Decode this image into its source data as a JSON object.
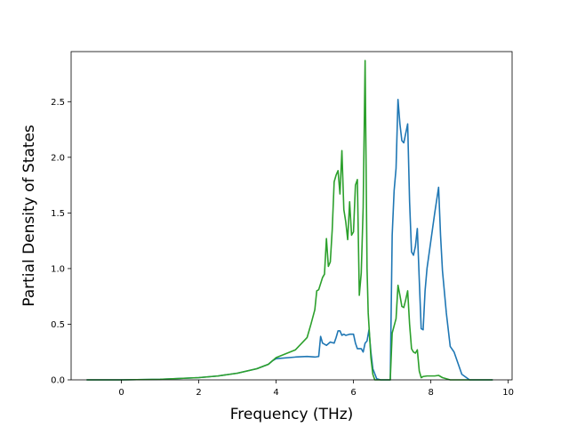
{
  "chart_data": {
    "type": "line",
    "title": "",
    "xlabel": "Frequency (THz)",
    "ylabel": "Partial Density of States",
    "xlim": [
      -1.3,
      10.1
    ],
    "ylim": [
      0,
      2.95
    ],
    "xticks": [
      0,
      2,
      4,
      6,
      8,
      10
    ],
    "yticks": [
      0.0,
      0.5,
      1.0,
      1.5,
      2.0,
      2.5
    ],
    "xtick_labels": [
      "0",
      "2",
      "4",
      "6",
      "8",
      "10"
    ],
    "ytick_labels": [
      "0.0",
      "0.5",
      "1.0",
      "1.5",
      "2.0",
      "2.5"
    ],
    "grid": false,
    "legend": "none",
    "series": [
      {
        "color": "#1f77b4",
        "x": [
          -0.9,
          0.0,
          1.0,
          2.0,
          2.5,
          3.0,
          3.5,
          3.8,
          3.9,
          4.0,
          4.5,
          4.8,
          5.0,
          5.1,
          5.15,
          5.2,
          5.3,
          5.4,
          5.5,
          5.55,
          5.6,
          5.65,
          5.7,
          5.75,
          5.8,
          5.9,
          6.0,
          6.05,
          6.1,
          6.2,
          6.25,
          6.3,
          6.35,
          6.4,
          6.45,
          6.5,
          6.6,
          6.7,
          6.8,
          6.9,
          6.95,
          7.0,
          7.05,
          7.1,
          7.15,
          7.2,
          7.25,
          7.3,
          7.4,
          7.45,
          7.5,
          7.55,
          7.6,
          7.65,
          7.7,
          7.75,
          7.8,
          7.85,
          7.9,
          8.0,
          8.1,
          8.2,
          8.25,
          8.3,
          8.4,
          8.5,
          8.6,
          8.7,
          8.8,
          9.0,
          9.3,
          9.6
        ],
        "y": [
          0.0,
          0.0,
          0.005,
          0.02,
          0.035,
          0.06,
          0.1,
          0.14,
          0.17,
          0.19,
          0.205,
          0.21,
          0.205,
          0.21,
          0.39,
          0.33,
          0.31,
          0.34,
          0.33,
          0.38,
          0.44,
          0.44,
          0.4,
          0.41,
          0.4,
          0.41,
          0.41,
          0.33,
          0.28,
          0.28,
          0.25,
          0.33,
          0.35,
          0.45,
          0.25,
          0.1,
          0.01,
          0.0,
          0.0,
          0.0,
          0.0,
          1.3,
          1.7,
          1.9,
          2.52,
          2.3,
          2.15,
          2.13,
          2.3,
          1.6,
          1.15,
          1.12,
          1.2,
          1.36,
          0.9,
          0.46,
          0.45,
          0.8,
          1.0,
          1.25,
          1.5,
          1.73,
          1.3,
          0.98,
          0.6,
          0.3,
          0.25,
          0.15,
          0.05,
          0.0,
          0.0,
          0.0
        ]
      },
      {
        "color": "#2ca02c",
        "x": [
          -0.9,
          0.0,
          1.0,
          2.0,
          2.5,
          3.0,
          3.5,
          3.8,
          3.9,
          4.0,
          4.5,
          4.8,
          4.9,
          5.0,
          5.05,
          5.1,
          5.2,
          5.25,
          5.3,
          5.35,
          5.4,
          5.45,
          5.5,
          5.55,
          5.6,
          5.65,
          5.7,
          5.75,
          5.8,
          5.85,
          5.9,
          5.95,
          6.0,
          6.05,
          6.1,
          6.15,
          6.2,
          6.25,
          6.3,
          6.35,
          6.38,
          6.45,
          6.5,
          6.55,
          6.6,
          6.7,
          6.8,
          6.9,
          6.95,
          7.0,
          7.1,
          7.15,
          7.2,
          7.25,
          7.3,
          7.35,
          7.4,
          7.45,
          7.5,
          7.55,
          7.6,
          7.65,
          7.7,
          7.75,
          7.8,
          7.9,
          8.0,
          8.1,
          8.2,
          8.25,
          8.3,
          8.5,
          8.7,
          8.8,
          9.0,
          9.3,
          9.6
        ],
        "y": [
          0.0,
          0.0,
          0.005,
          0.02,
          0.035,
          0.06,
          0.1,
          0.14,
          0.17,
          0.2,
          0.27,
          0.38,
          0.5,
          0.63,
          0.8,
          0.81,
          0.92,
          0.95,
          1.27,
          1.02,
          1.06,
          1.35,
          1.78,
          1.84,
          1.88,
          1.67,
          2.06,
          1.53,
          1.42,
          1.26,
          1.6,
          1.3,
          1.33,
          1.75,
          1.8,
          0.76,
          0.96,
          1.55,
          2.87,
          1.0,
          0.6,
          0.2,
          0.05,
          0.0,
          0.0,
          0.0,
          0.0,
          0.0,
          0.0,
          0.42,
          0.55,
          0.85,
          0.76,
          0.66,
          0.65,
          0.72,
          0.8,
          0.5,
          0.28,
          0.25,
          0.24,
          0.27,
          0.08,
          0.02,
          0.03,
          0.035,
          0.035,
          0.035,
          0.04,
          0.03,
          0.02,
          0.0,
          0.0,
          0.0,
          0.0,
          0.0,
          0.0
        ]
      }
    ]
  }
}
